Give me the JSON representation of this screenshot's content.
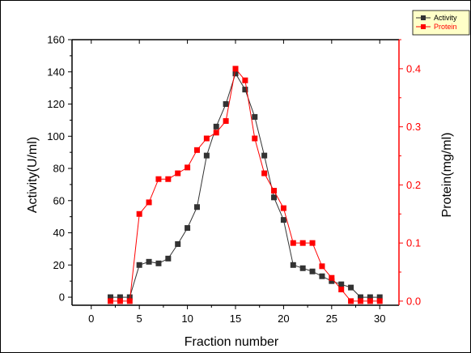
{
  "chart_data": {
    "type": "line",
    "title": "",
    "xlabel": "Fraction number",
    "ylabel_left": "Activity(U/ml)",
    "ylabel_right": "Protein(mg/ml)",
    "xlim": [
      -2,
      32
    ],
    "ylim_left": [
      -5,
      160
    ],
    "ylim_right": [
      -0.0071,
      0.45
    ],
    "x_ticks": [
      0,
      5,
      10,
      15,
      20,
      25,
      30
    ],
    "y_left_ticks": [
      0,
      20,
      40,
      60,
      80,
      100,
      120,
      140,
      160
    ],
    "y_right_ticks": [
      0.0,
      0.1,
      0.2,
      0.3,
      0.4
    ],
    "y_right_tick_labels": [
      "0.0",
      "0.1",
      "0.2",
      "0.3",
      "0.4"
    ],
    "grid": false,
    "legend_position": "top-right",
    "series": [
      {
        "name": "Activity",
        "axis": "left",
        "color": "#333333",
        "x": [
          2,
          3,
          4,
          5,
          6,
          7,
          8,
          9,
          10,
          11,
          12,
          13,
          14,
          15,
          16,
          17,
          18,
          19,
          20,
          21,
          22,
          23,
          24,
          25,
          26,
          27,
          28,
          29,
          30
        ],
        "y": [
          0,
          0,
          0,
          20,
          22,
          21,
          24,
          33,
          43,
          56,
          88,
          106,
          120,
          139,
          129,
          112,
          88,
          62,
          48,
          20,
          18,
          16,
          13,
          10,
          8,
          6,
          0,
          0,
          0
        ]
      },
      {
        "name": "Protein",
        "axis": "right",
        "color": "#ff0000",
        "x": [
          2,
          3,
          4,
          5,
          6,
          7,
          8,
          9,
          10,
          11,
          12,
          13,
          14,
          15,
          16,
          17,
          18,
          19,
          20,
          21,
          22,
          23,
          24,
          25,
          26,
          27,
          28,
          29,
          30
        ],
        "y": [
          0,
          0,
          0,
          0.15,
          0.17,
          0.21,
          0.21,
          0.22,
          0.23,
          0.26,
          0.28,
          0.29,
          0.31,
          0.4,
          0.38,
          0.28,
          0.22,
          0.19,
          0.16,
          0.1,
          0.1,
          0.1,
          0.06,
          0.04,
          0.02,
          0.0,
          0.0,
          0.0,
          0.0
        ]
      }
    ]
  }
}
